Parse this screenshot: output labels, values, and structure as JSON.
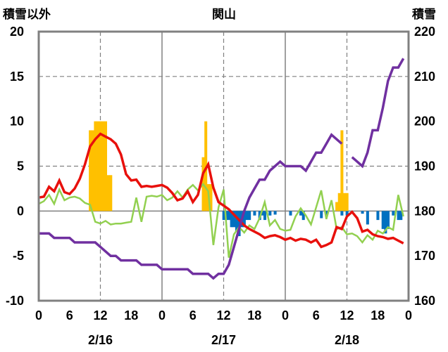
{
  "chart_data": {
    "type": "line+bar",
    "title": "関山",
    "left_axis_label": "積雪以外",
    "right_axis_label": "積雪",
    "left_ylim": [
      -10,
      20
    ],
    "left_yticks": [
      "-10",
      "-5",
      "0",
      "5",
      "10",
      "15",
      "20"
    ],
    "right_ylim": [
      160,
      220
    ],
    "right_yticks": [
      "160",
      "170",
      "180",
      "190",
      "200",
      "210",
      "220"
    ],
    "x_tick_labels": [
      "0",
      "6",
      "12",
      "18",
      "0",
      "6",
      "12",
      "18",
      "0",
      "6",
      "12",
      "18",
      "0"
    ],
    "date_labels": [
      "2/16",
      "2/17",
      "2/18"
    ],
    "grid": "dashed vertical at 12h and dashed horizontal at 5 and 15; solid day separators",
    "colors": {
      "temperature": "#e8100c",
      "green_series": "#92d050",
      "snow_depth": "#7030a0",
      "snowfall": "#ffc000",
      "negative_bars": "#0070c0"
    },
    "bars_positive": [
      [
        10,
        9
      ],
      [
        10.5,
        9
      ],
      [
        11,
        10
      ],
      [
        11.5,
        10
      ],
      [
        12,
        10
      ],
      [
        12.5,
        10
      ],
      [
        13,
        10
      ],
      [
        13.5,
        4
      ],
      [
        14,
        4
      ],
      [
        32,
        6
      ],
      [
        32.5,
        10
      ],
      [
        33,
        3
      ],
      [
        33.5,
        3
      ],
      [
        58,
        1
      ],
      [
        58.5,
        2
      ],
      [
        59,
        9
      ],
      [
        59.5,
        2
      ],
      [
        60,
        2
      ]
    ],
    "bars_negative": [
      [
        36,
        -1
      ],
      [
        36.5,
        -1
      ],
      [
        37,
        -1
      ],
      [
        37.5,
        -1.8
      ],
      [
        38,
        -1.8
      ],
      [
        38.5,
        -2.3
      ],
      [
        39,
        -2.8
      ],
      [
        39.5,
        -1.8
      ],
      [
        40,
        -1.8
      ],
      [
        40.5,
        -1
      ],
      [
        41,
        -1
      ],
      [
        42,
        -0.5
      ],
      [
        43,
        -1
      ],
      [
        43.5,
        -0.5
      ],
      [
        44,
        -1
      ],
      [
        45,
        -0.5
      ],
      [
        46,
        -0.4
      ],
      [
        49,
        -0.5
      ],
      [
        51,
        -0.5
      ],
      [
        51.5,
        -1
      ],
      [
        55,
        -0.8
      ],
      [
        56,
        -0.5
      ],
      [
        59,
        -0.5
      ],
      [
        60,
        -0.5
      ],
      [
        63,
        -0.3
      ],
      [
        64,
        -1.5
      ],
      [
        66,
        -1
      ],
      [
        67,
        -2
      ],
      [
        67.5,
        -2.5
      ],
      [
        68,
        -2
      ],
      [
        69,
        -0.5
      ],
      [
        70,
        -1
      ],
      [
        70.5,
        -1
      ]
    ],
    "temperature": [
      [
        0,
        1.5
      ],
      [
        1,
        1.6
      ],
      [
        2,
        2.7
      ],
      [
        3,
        2.2
      ],
      [
        4,
        3.4
      ],
      [
        5,
        2.1
      ],
      [
        6,
        1.9
      ],
      [
        7,
        2.5
      ],
      [
        8,
        3.6
      ],
      [
        9,
        5.2
      ],
      [
        10,
        7.2
      ],
      [
        11,
        8
      ],
      [
        12,
        8.6
      ],
      [
        13,
        8.3
      ],
      [
        14,
        8
      ],
      [
        15,
        7.5
      ],
      [
        16,
        6.3
      ],
      [
        17,
        4.1
      ],
      [
        18,
        3.4
      ],
      [
        19,
        3.5
      ],
      [
        20,
        2.7
      ],
      [
        21,
        2.8
      ],
      [
        22,
        2.7
      ],
      [
        23,
        2.8
      ],
      [
        24,
        2.9
      ],
      [
        25,
        2.6
      ],
      [
        26,
        2
      ],
      [
        27,
        1.2
      ],
      [
        28,
        1.4
      ],
      [
        29,
        2.2
      ],
      [
        30,
        1
      ],
      [
        31,
        1.8
      ],
      [
        32,
        4.2
      ],
      [
        33,
        5.2
      ],
      [
        34,
        2.6
      ],
      [
        35,
        1
      ],
      [
        36,
        0.6
      ],
      [
        37,
        0.2
      ],
      [
        38,
        -0.4
      ],
      [
        39,
        -1
      ],
      [
        40,
        -1.6
      ],
      [
        41,
        -2
      ],
      [
        42,
        -2.3
      ],
      [
        43,
        -2.6
      ],
      [
        44,
        -3
      ],
      [
        45,
        -2.8
      ],
      [
        46,
        -2.7
      ],
      [
        47,
        -2.9
      ],
      [
        48,
        -3.2
      ],
      [
        49,
        -3
      ],
      [
        50,
        -3.3
      ],
      [
        51,
        -3.1
      ],
      [
        52,
        -3.2
      ],
      [
        53,
        -3.5
      ],
      [
        54,
        -3.2
      ],
      [
        55,
        -4
      ],
      [
        56,
        -3.8
      ],
      [
        57,
        -3.5
      ],
      [
        58,
        -1.8
      ],
      [
        59,
        -2
      ],
      [
        60,
        -0.6
      ],
      [
        61,
        -0.1
      ],
      [
        62,
        -0.8
      ],
      [
        63,
        -2.3
      ],
      [
        64,
        -2.1
      ],
      [
        65,
        -2.6
      ],
      [
        66,
        -2.8
      ],
      [
        67,
        -2.9
      ],
      [
        68,
        -3.1
      ],
      [
        69,
        -3
      ],
      [
        70,
        -3.3
      ],
      [
        71,
        -3.6
      ]
    ],
    "green_series": [
      [
        0,
        0.8
      ],
      [
        1,
        1.1
      ],
      [
        2,
        1.8
      ],
      [
        3,
        0.8
      ],
      [
        4,
        2.4
      ],
      [
        5,
        1.2
      ],
      [
        6,
        1.5
      ],
      [
        7,
        1.6
      ],
      [
        8,
        1.4
      ],
      [
        9,
        0.9
      ],
      [
        10,
        0.7
      ],
      [
        11,
        -1.2
      ],
      [
        12,
        -1.4
      ],
      [
        13,
        -1.1
      ],
      [
        14,
        -1.5
      ],
      [
        15,
        -1.4
      ],
      [
        16,
        -1.4
      ],
      [
        17,
        -1.3
      ],
      [
        18,
        -1.2
      ],
      [
        19,
        1.5
      ],
      [
        20,
        -1.2
      ],
      [
        21,
        1.6
      ],
      [
        22,
        1.7
      ],
      [
        23,
        1.6
      ],
      [
        24,
        1.8
      ],
      [
        25,
        1.2
      ],
      [
        26,
        1.5
      ],
      [
        27,
        2.2
      ],
      [
        28,
        1.5
      ],
      [
        29,
        2.4
      ],
      [
        30,
        2.9
      ],
      [
        31,
        2.3
      ],
      [
        32,
        3
      ],
      [
        33,
        2.2
      ],
      [
        34,
        -3.8
      ],
      [
        35,
        0.4
      ],
      [
        36,
        2.4
      ],
      [
        37,
        -5.2
      ],
      [
        38,
        -2.6
      ],
      [
        39,
        -1.8
      ],
      [
        40,
        -2.4
      ],
      [
        41,
        -1.6
      ],
      [
        42,
        -2
      ],
      [
        43,
        -0.8
      ],
      [
        44,
        1
      ],
      [
        45,
        -1.6
      ],
      [
        46,
        -1
      ],
      [
        47,
        -2
      ],
      [
        48,
        -2.2
      ],
      [
        49,
        -2.1
      ],
      [
        50,
        -0.6
      ],
      [
        51,
        0.3
      ],
      [
        52,
        -0.5
      ],
      [
        53,
        -1.5
      ],
      [
        54,
        0.4
      ],
      [
        55,
        2.3
      ],
      [
        56,
        -0.9
      ],
      [
        57,
        1.2
      ],
      [
        58,
        -2
      ],
      [
        59,
        -1.8
      ],
      [
        60,
        -2.6
      ],
      [
        61,
        -2.5
      ],
      [
        62,
        -2.8
      ],
      [
        63,
        -3.5
      ],
      [
        64,
        -2.7
      ],
      [
        65,
        -3.2
      ],
      [
        66,
        -2.2
      ],
      [
        67,
        -2.5
      ],
      [
        68,
        -1.8
      ],
      [
        69,
        -2.1
      ],
      [
        70,
        1.8
      ],
      [
        71,
        -0.6
      ]
    ],
    "snow_depth": [
      [
        0,
        175
      ],
      [
        1,
        175
      ],
      [
        2,
        175
      ],
      [
        3,
        174
      ],
      [
        4,
        174
      ],
      [
        5,
        174
      ],
      [
        6,
        174
      ],
      [
        7,
        173
      ],
      [
        8,
        173
      ],
      [
        9,
        173
      ],
      [
        10,
        173
      ],
      [
        11,
        173
      ],
      [
        12,
        172
      ],
      [
        13,
        171
      ],
      [
        14,
        170
      ],
      [
        15,
        170
      ],
      [
        16,
        169
      ],
      [
        17,
        169
      ],
      [
        18,
        169
      ],
      [
        19,
        169
      ],
      [
        20,
        168
      ],
      [
        21,
        168
      ],
      [
        22,
        168
      ],
      [
        23,
        168
      ],
      [
        24,
        167
      ],
      [
        25,
        167
      ],
      [
        26,
        167
      ],
      [
        27,
        167
      ],
      [
        28,
        167
      ],
      [
        29,
        167
      ],
      [
        30,
        166
      ],
      [
        31,
        166
      ],
      [
        32,
        166
      ],
      [
        33,
        166
      ],
      [
        34,
        165
      ],
      [
        35,
        166
      ],
      [
        36,
        166
      ],
      [
        37,
        168
      ],
      [
        38,
        172
      ],
      [
        39,
        176
      ],
      [
        40,
        180
      ],
      [
        41,
        183
      ],
      [
        42,
        185
      ],
      [
        43,
        187
      ],
      [
        44,
        187
      ],
      [
        45,
        189
      ],
      [
        46,
        190
      ],
      [
        47,
        191
      ],
      [
        48,
        190
      ],
      [
        49,
        190
      ],
      [
        50,
        190
      ],
      [
        51,
        190
      ],
      [
        52,
        189
      ],
      [
        53,
        191
      ],
      [
        54,
        193
      ],
      [
        55,
        193
      ],
      [
        56,
        195
      ],
      [
        57,
        197
      ],
      [
        58,
        196
      ],
      [
        59,
        195
      ],
      null,
      [
        61,
        192
      ],
      [
        62,
        191
      ],
      [
        63,
        190
      ],
      [
        64,
        193
      ],
      [
        65,
        198
      ],
      [
        66,
        198
      ],
      [
        67,
        203
      ],
      [
        68,
        209
      ],
      [
        69,
        212
      ],
      [
        70,
        212
      ],
      [
        71,
        214
      ]
    ]
  }
}
